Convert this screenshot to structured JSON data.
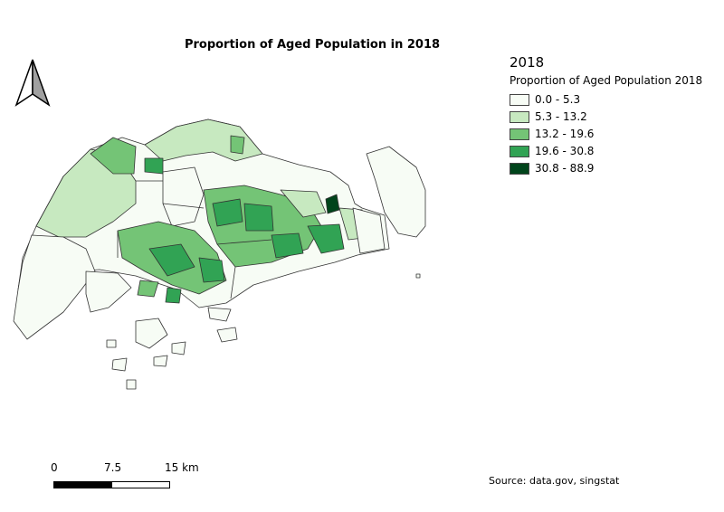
{
  "title": "Proportion of Aged Population in 2018",
  "legend": {
    "year": "2018",
    "subtitle": "Proportion of Aged Population 2018",
    "classes": [
      {
        "label": "0.0 - 5.3",
        "color": "#f7fcf5"
      },
      {
        "label": "5.3 - 13.2",
        "color": "#c7e9c0"
      },
      {
        "label": "13.2 - 19.6",
        "color": "#74c476"
      },
      {
        "label": "19.6 - 30.8",
        "color": "#31a354"
      },
      {
        "label": "30.8 - 88.9",
        "color": "#00441b"
      }
    ]
  },
  "scale": {
    "tick_0": "0",
    "tick_1": "7.5",
    "tick_2": "15 km"
  },
  "source": "Source: data.gov, singstat",
  "icons": {
    "north_arrow": "north-arrow-icon"
  }
}
